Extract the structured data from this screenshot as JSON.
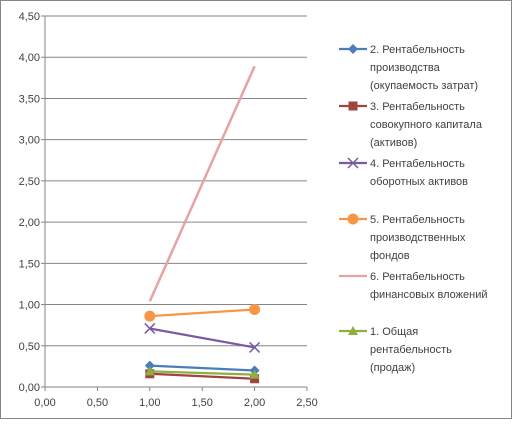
{
  "chart_data": {
    "type": "scatter",
    "title": "",
    "xlabel": "",
    "ylabel": "",
    "xlim": [
      0,
      2.5
    ],
    "ylim": [
      0,
      4.5
    ],
    "x_ticks": [
      "0,00",
      "0,50",
      "1,00",
      "1,50",
      "2,00",
      "2,50"
    ],
    "y_ticks": [
      "0,00",
      "0,50",
      "1,00",
      "1,50",
      "2,00",
      "2,50",
      "3,00",
      "3,50",
      "4,00",
      "4,50"
    ],
    "grid": "horizontal",
    "legend_position": "right",
    "series": [
      {
        "name": "2. Рентабельность производства (окупаемость затрат)",
        "color": "#4a7ebb",
        "marker": "diamond",
        "x": [
          1,
          2
        ],
        "y": [
          0.26,
          0.2
        ]
      },
      {
        "name": "3. Рентабельность совокупного капитала (активов)",
        "color": "#a0443f",
        "marker": "square",
        "x": [
          1,
          2
        ],
        "y": [
          0.16,
          0.1
        ]
      },
      {
        "name": "4. Рентабельность оборотных активов",
        "color": "#7a5ba3",
        "marker": "x",
        "x": [
          1,
          2
        ],
        "y": [
          0.71,
          0.48
        ]
      },
      {
        "name": "5. Рентабельность производственных фондов",
        "color": "#f79646",
        "marker": "circle",
        "x": [
          1,
          2
        ],
        "y": [
          0.86,
          0.94
        ]
      },
      {
        "name": "6. Рентабельность финансовых вложений",
        "color": "#e6a3a3",
        "marker": "none",
        "x": [
          1,
          2
        ],
        "y": [
          1.04,
          3.89
        ]
      },
      {
        "name": "1. Общая рентабельность (продаж)",
        "color": "#8fb040",
        "marker": "triangle",
        "x": [
          1,
          2
        ],
        "y": [
          0.19,
          0.15
        ]
      }
    ]
  }
}
